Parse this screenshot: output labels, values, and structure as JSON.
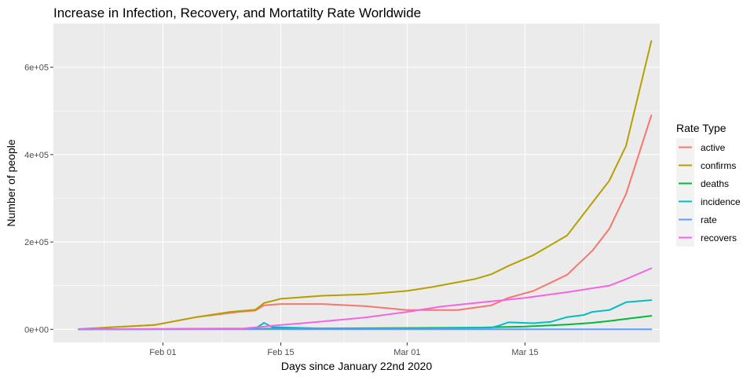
{
  "chart_data": {
    "type": "line",
    "title": "Increase in Infection, Recovery, and Mortatilty Rate Worldwide",
    "xlabel": "Days since January 22nd 2020",
    "ylabel": "Number of people",
    "x_start": "2020-01-22",
    "x_tick_labels": [
      "Feb 01",
      "Feb 15",
      "Mar 01",
      "Mar 15"
    ],
    "x_ticks": [
      "2020-02-01",
      "2020-02-15",
      "2020-03-01",
      "2020-03-15"
    ],
    "y_tick_labels": [
      "0e+00",
      "2e+05",
      "4e+05",
      "6e+05"
    ],
    "y_ticks": [
      0,
      200000,
      400000,
      600000
    ],
    "xlim": [
      "2020-01-19",
      "2020-03-31"
    ],
    "ylim": [
      -30000,
      700000
    ],
    "grid": true,
    "legend": {
      "title": "Rate Type",
      "position": "right"
    },
    "background": "#ebebeb",
    "series": [
      {
        "name": "active",
        "color": "#F8766D",
        "x": [
          "2020-01-22",
          "2020-01-31",
          "2020-02-05",
          "2020-02-10",
          "2020-02-12",
          "2020-02-13",
          "2020-02-15",
          "2020-02-20",
          "2020-02-25",
          "2020-03-01",
          "2020-03-07",
          "2020-03-11",
          "2020-03-13",
          "2020-03-16",
          "2020-03-20",
          "2020-03-23",
          "2020-03-25",
          "2020-03-27",
          "2020-03-30"
        ],
        "y": [
          550,
          10000,
          28000,
          40000,
          43000,
          55000,
          58000,
          58000,
          53000,
          44000,
          44000,
          55000,
          72000,
          88000,
          125000,
          180000,
          230000,
          310000,
          490000
        ]
      },
      {
        "name": "confirms",
        "color": "#B79F00",
        "x": [
          "2020-01-22",
          "2020-01-31",
          "2020-02-05",
          "2020-02-09",
          "2020-02-12",
          "2020-02-13",
          "2020-02-15",
          "2020-02-20",
          "2020-02-25",
          "2020-03-01",
          "2020-03-04",
          "2020-03-09",
          "2020-03-11",
          "2020-03-13",
          "2020-03-16",
          "2020-03-20",
          "2020-03-23",
          "2020-03-25",
          "2020-03-27",
          "2020-03-30"
        ],
        "y": [
          550,
          10000,
          28000,
          40000,
          45000,
          60000,
          70000,
          77000,
          80000,
          88000,
          97000,
          115000,
          126000,
          145000,
          170000,
          215000,
          290000,
          340000,
          420000,
          660000
        ]
      },
      {
        "name": "deaths",
        "color": "#00BA38",
        "x": [
          "2020-01-22",
          "2020-02-05",
          "2020-02-15",
          "2020-03-01",
          "2020-03-10",
          "2020-03-15",
          "2020-03-20",
          "2020-03-23",
          "2020-03-25",
          "2020-03-27",
          "2020-03-30"
        ],
        "y": [
          17,
          600,
          1700,
          3000,
          4200,
          6500,
          11000,
          15000,
          19000,
          24000,
          31000
        ]
      },
      {
        "name": "incidence",
        "color": "#00BFC4",
        "x": [
          "2020-01-22",
          "2020-02-12",
          "2020-02-13",
          "2020-02-14",
          "2020-02-20",
          "2020-03-01",
          "2020-03-11",
          "2020-03-12",
          "2020-03-13",
          "2020-03-16",
          "2020-03-18",
          "2020-03-20",
          "2020-03-22",
          "2020-03-23",
          "2020-03-25",
          "2020-03-27",
          "2020-03-30"
        ],
        "y": [
          100,
          2000,
          15000,
          5000,
          2000,
          2000,
          4000,
          9000,
          16000,
          14000,
          17000,
          28000,
          33000,
          40000,
          44000,
          62000,
          67000
        ]
      },
      {
        "name": "rate",
        "color": "#619CFF",
        "x": [
          "2020-01-22",
          "2020-03-30"
        ],
        "y": [
          0,
          0
        ]
      },
      {
        "name": "recovers",
        "color": "#F564E3",
        "x": [
          "2020-01-22",
          "2020-02-10",
          "2020-02-15",
          "2020-02-20",
          "2020-02-25",
          "2020-03-01",
          "2020-03-05",
          "2020-03-10",
          "2020-03-15",
          "2020-03-20",
          "2020-03-25",
          "2020-03-27",
          "2020-03-30"
        ],
        "y": [
          28,
          1000,
          10000,
          18000,
          27000,
          40000,
          52000,
          62000,
          72000,
          85000,
          100000,
          115000,
          140000
        ]
      }
    ]
  }
}
